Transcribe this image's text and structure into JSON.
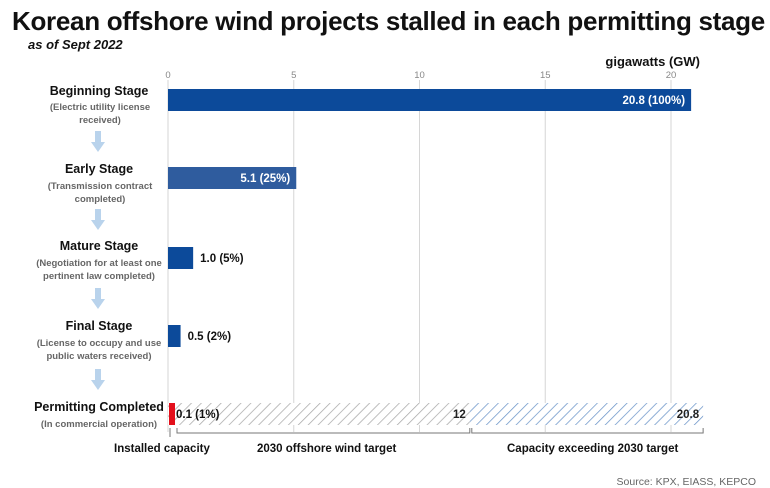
{
  "title": "Korean offshore wind projects stalled in each permitting stage",
  "subtitle": "as of Sept 2022",
  "unit_label": "gigawatts (GW)",
  "source": "Source: KPX, EIASS, KEPCO",
  "stages": [
    {
      "name": "Beginning Stage",
      "desc": "(Electric utility license received)"
    },
    {
      "name": "Early Stage",
      "desc": "(Transmission contract completed)"
    },
    {
      "name": "Mature Stage",
      "desc": "(Negotiation for at least one pertinent law completed)"
    },
    {
      "name": "Final Stage",
      "desc": "(License to occupy and use public waters received)"
    },
    {
      "name": "Permitting Completed",
      "desc": "(In commercial operation)"
    }
  ],
  "footer": {
    "installed": "Installed capacity",
    "target": "2030 offshore wind target",
    "exceeding": "Capacity exceeding 2030 target"
  },
  "colors": {
    "bar": "#0c4a9a",
    "bar_early": "#2f5c9e",
    "installed": "#e3101c",
    "hatch_gray": "#a8a8a8",
    "hatch_blue": "#6c95c9",
    "grid": "#d6d6d6",
    "arrow": "#b9d3ec"
  },
  "chart_data": {
    "type": "bar",
    "orientation": "horizontal",
    "xlim": [
      0,
      21
    ],
    "xticks": [
      0,
      5,
      10,
      15,
      20
    ],
    "xlabel": "gigawatts (GW)",
    "grid": true,
    "categories": [
      "Beginning Stage",
      "Early Stage",
      "Mature Stage",
      "Final Stage",
      "Permitting Completed"
    ],
    "values": [
      20.8,
      5.1,
      1.0,
      0.5,
      0.1
    ],
    "labels": [
      "20.8 (100%)",
      "5.1 (25%)",
      "1.0 (5%)",
      "0.5 (2%)",
      "0.1 (1%)"
    ],
    "reference": {
      "target_2030": 12,
      "target_label": "12",
      "total": 20.8,
      "total_label": "20.8"
    }
  }
}
